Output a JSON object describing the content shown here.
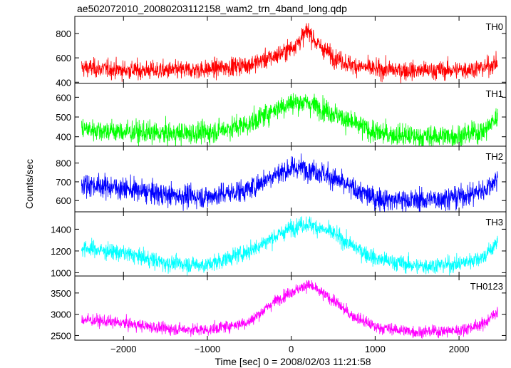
{
  "chart_data": {
    "type": "line",
    "title": "ae502072010_20080203112158_wam2_trn_4band_long.qdp",
    "xlabel": "Time [sec] 0 = 2008/02/03 11:21:58",
    "ylabel": "Counts/sec",
    "xlim": [
      -2580,
      2560
    ],
    "x_ticks": [
      -2000,
      -1000,
      0,
      1000,
      2000
    ],
    "x_tick_labels": [
      "−2000",
      "−1000",
      "0",
      "1000",
      "2000"
    ],
    "x_range": [
      -2500,
      2460
    ],
    "profile_x": [
      -2500,
      -2000,
      -1500,
      -1000,
      -500,
      -200,
      0,
      100,
      200,
      300,
      500,
      700,
      1000,
      1500,
      2000,
      2300,
      2460
    ],
    "panels": [
      {
        "name": "TH0",
        "color": "#ff0000",
        "ylim": [
          390,
          940
        ],
        "ticks": [
          400,
          600,
          800
        ],
        "noise": 38,
        "profile_y": [
          520,
          500,
          495,
          505,
          545,
          610,
          680,
          740,
          830,
          720,
          610,
          545,
          505,
          495,
          500,
          520,
          560
        ]
      },
      {
        "name": "TH1",
        "color": "#00ff00",
        "ylim": [
          352,
          670
        ],
        "ticks": [
          400,
          500,
          600
        ],
        "noise": 28,
        "profile_y": [
          440,
          425,
          415,
          420,
          465,
          540,
          570,
          575,
          570,
          555,
          520,
          475,
          420,
          400,
          405,
          430,
          500
        ]
      },
      {
        "name": "TH2",
        "color": "#0000ff",
        "ylim": [
          540,
          890
        ],
        "ticks": [
          600,
          700,
          800
        ],
        "noise": 30,
        "profile_y": [
          690,
          665,
          630,
          620,
          660,
          740,
          770,
          775,
          770,
          760,
          720,
          670,
          610,
          600,
          620,
          655,
          720
        ]
      },
      {
        "name": "TH3",
        "color": "#00ffff",
        "ylim": [
          970,
          1560
        ],
        "ticks": [
          1000,
          1200,
          1400
        ],
        "noise": 38,
        "profile_y": [
          1230,
          1180,
          1090,
          1070,
          1200,
          1330,
          1410,
          1440,
          1450,
          1420,
          1360,
          1260,
          1130,
          1060,
          1080,
          1150,
          1280
        ]
      },
      {
        "name": "TH0123",
        "color": "#ff00ff",
        "ylim": [
          2390,
          3900
        ],
        "ticks": [
          2500,
          3000,
          3500
        ],
        "noise": 70,
        "profile_y": [
          2880,
          2790,
          2660,
          2630,
          2820,
          3300,
          3530,
          3600,
          3700,
          3580,
          3330,
          3000,
          2700,
          2580,
          2620,
          2780,
          3080
        ]
      }
    ]
  }
}
